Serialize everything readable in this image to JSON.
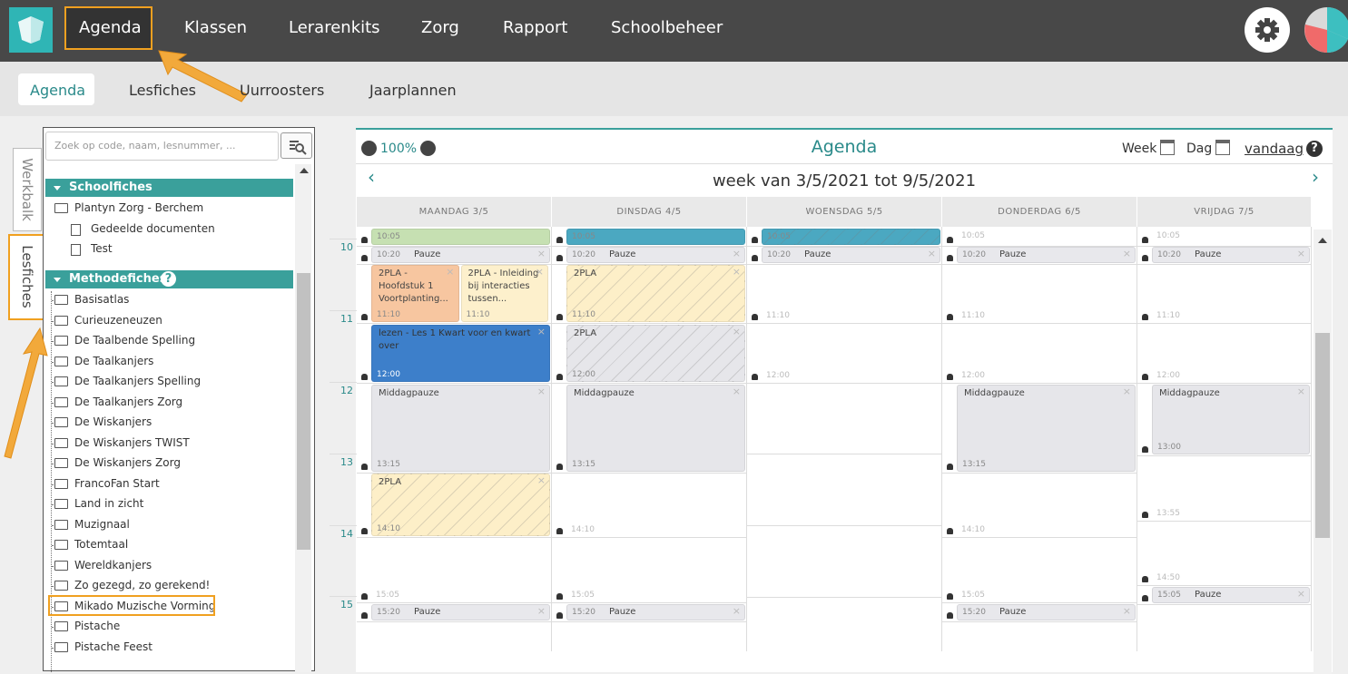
{
  "nav": {
    "items": [
      "Agenda",
      "Klassen",
      "Lerarenkits",
      "Zorg",
      "Rapport",
      "Schoolbeheer"
    ]
  },
  "subnav": {
    "items": [
      "Agenda",
      "Lesfiches",
      "Uurroosters",
      "Jaarplannen"
    ]
  },
  "side_tabs": [
    "Werkbalk",
    "Lesfiches"
  ],
  "sidebar": {
    "search_placeholder": "Zoek op code, naam, lesnummer, ...",
    "sections": [
      {
        "title": "Schoolfiches",
        "items": [
          "Plantyn Zorg - Berchem",
          "Gedeelde documenten",
          "Test"
        ]
      },
      {
        "title": "Methodefiches",
        "items": [
          "Basisatlas",
          "Curieuzeneuzen",
          "De Taalbende Spelling",
          "De Taalkanjers",
          "De Taalkanjers Spelling",
          "De Taalkanjers Zorg",
          "De Wiskanjers",
          "De Wiskanjers TWIST",
          "De Wiskanjers Zorg",
          "FrancoFan Start",
          "Land in zicht",
          "Muzignaal",
          "Totemtaal",
          "Wereldkanjers",
          "Zo gezegd, zo gerekend!",
          "Mikado Muzische Vorming",
          "Pistache",
          "Pistache Feest"
        ]
      }
    ]
  },
  "calendar": {
    "zoom": "100%",
    "title": "Agenda",
    "view_week": "Week",
    "view_day": "Dag",
    "today": "vandaag",
    "prev": "‹",
    "next": "›",
    "week_label": "week van 3/5/2021 tot 9/5/2021",
    "hours": [
      "10",
      "11",
      "12",
      "13",
      "14",
      "15"
    ],
    "days": [
      {
        "name": "MAANDAG 3/5",
        "events": [
          {
            "time": "10:05",
            "color": "#c6e0b2"
          },
          {
            "label": "Pauze",
            "time": "10:20",
            "color": "#e8e8ec"
          },
          {
            "label": "2PLA - Hoofdstuk 1 Voortplanting...",
            "time": "11:10",
            "color": "#f7c6a0"
          },
          {
            "label": "2PLA - Inleiding bij interacties tussen...",
            "time": "11:10",
            "color": "#fdf0cc"
          },
          {
            "label": "lezen - Les 1 Kwart voor en kwart over",
            "time": "12:00",
            "color": "#3d7fca"
          },
          {
            "label": "Middagpauze",
            "time": "13:15",
            "color": "#e6e6ea"
          },
          {
            "label": "2PLA",
            "time": "14:10",
            "color": "#fdefc8",
            "hatched": true
          },
          {
            "time": "15:05"
          },
          {
            "label": "Pauze",
            "time": "15:20",
            "color": "#e8e8ec"
          }
        ]
      },
      {
        "name": "DINSDAG 4/5",
        "events": [
          {
            "time": "10:05",
            "color": "#4ba8c1"
          },
          {
            "label": "Pauze",
            "time": "10:20",
            "color": "#e8e8ec"
          },
          {
            "label": "2PLA",
            "time": "11:10",
            "color": "#fdefc8",
            "hatched": true
          },
          {
            "label": "2PLA",
            "time": "12:00",
            "color": "#e6e6ea",
            "hatched": true
          },
          {
            "label": "Middagpauze",
            "time": "13:15",
            "color": "#e6e6ea"
          },
          {
            "time": "14:10"
          },
          {
            "time": "15:05"
          },
          {
            "label": "Pauze",
            "time": "15:20",
            "color": "#e8e8ec"
          }
        ]
      },
      {
        "name": "WOENSDAG 5/5",
        "events": [
          {
            "time": "10:05",
            "color": "#4ba8c1",
            "hatched": true
          },
          {
            "label": "Pauze",
            "time": "10:20",
            "color": "#e8e8ec"
          },
          {
            "time": "11:10"
          },
          {
            "time": "12:00"
          }
        ]
      },
      {
        "name": "DONDERDAG 6/5",
        "events": [
          {
            "time": "10:05"
          },
          {
            "label": "Pauze",
            "time": "10:20",
            "color": "#e8e8ec"
          },
          {
            "time": "11:10"
          },
          {
            "time": "12:00"
          },
          {
            "label": "Middagpauze",
            "time": "13:15",
            "color": "#e6e6ea"
          },
          {
            "time": "14:10"
          },
          {
            "time": "15:05"
          },
          {
            "label": "Pauze",
            "time": "15:20",
            "color": "#e8e8ec"
          }
        ]
      },
      {
        "name": "VRIJDAG 7/5",
        "events": [
          {
            "time": "10:05"
          },
          {
            "label": "Pauze",
            "time": "10:20",
            "color": "#e8e8ec"
          },
          {
            "time": "11:10"
          },
          {
            "time": "12:00"
          },
          {
            "label": "Middagpauze",
            "time": "13:00",
            "color": "#e6e6ea"
          },
          {
            "time": "13:55"
          },
          {
            "time": "14:50"
          },
          {
            "label": "Pauze",
            "time": "15:05",
            "color": "#e8e8ec"
          }
        ]
      }
    ]
  }
}
